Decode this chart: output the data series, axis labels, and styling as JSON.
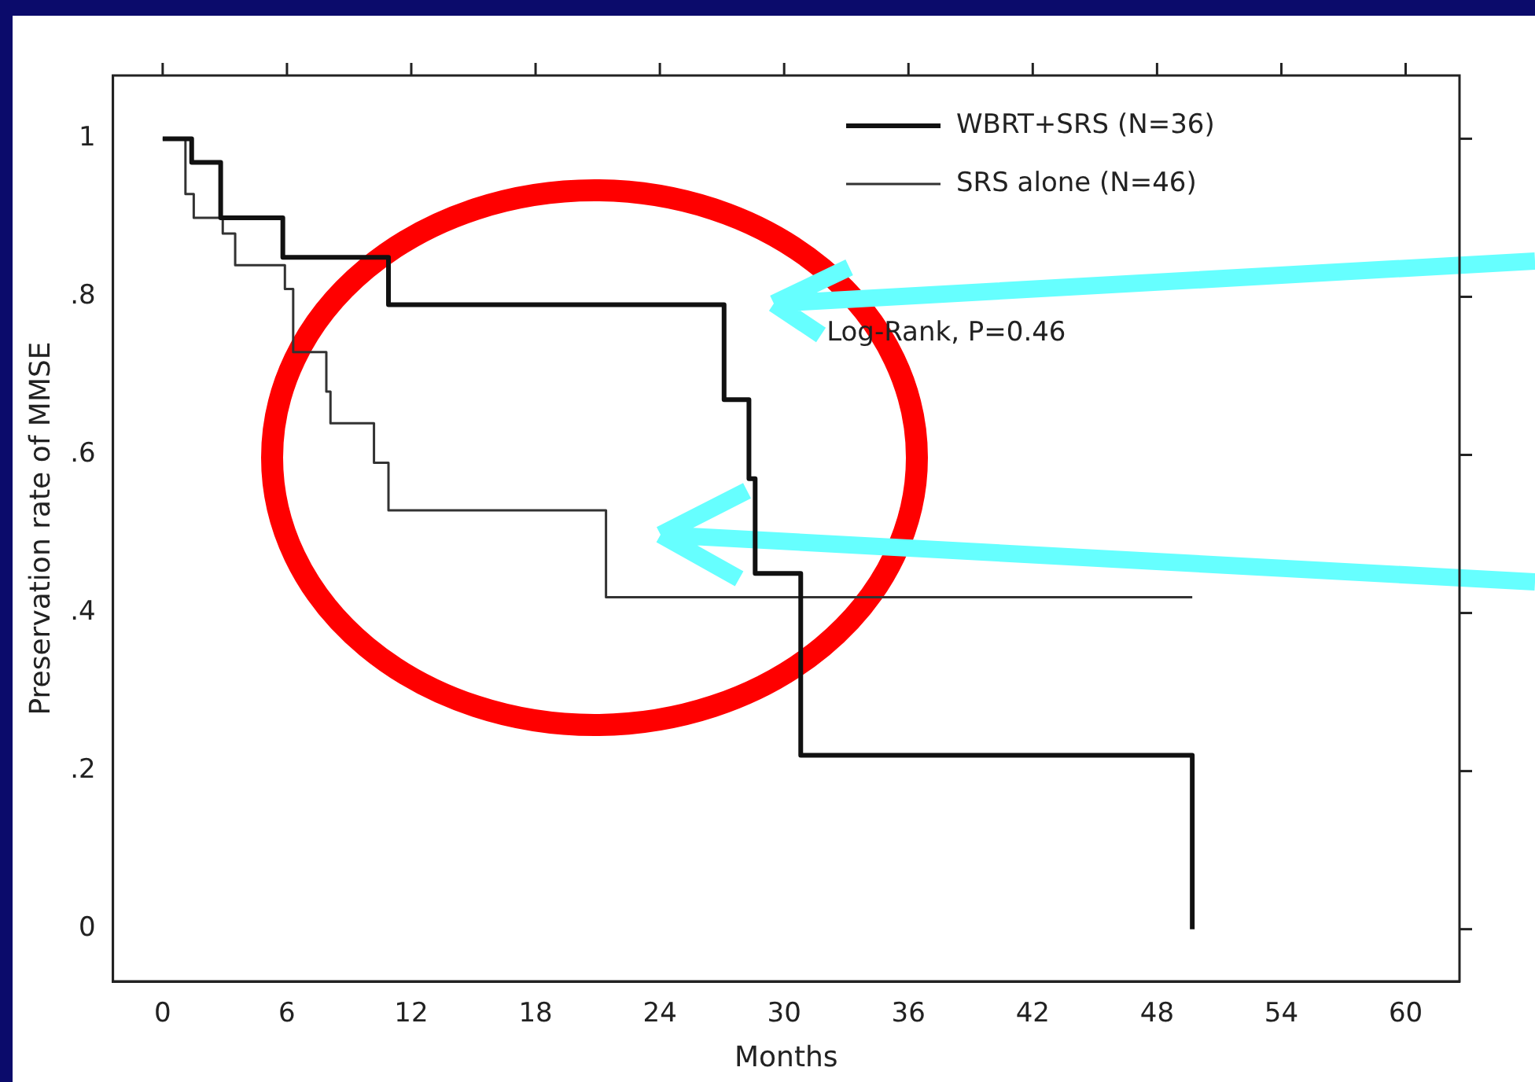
{
  "chart_data": {
    "type": "step",
    "xlabel": "Months",
    "ylabel": "Preservation rate of MMSE",
    "xlim": [
      -2.4,
      62.6
    ],
    "ylim": [
      -0.066,
      1.08
    ],
    "xticks": [
      0,
      6,
      12,
      18,
      24,
      30,
      36,
      42,
      48,
      54,
      60
    ],
    "yticks": [
      {
        "value": 0,
        "label": "0"
      },
      {
        "value": 0.2,
        "label": ".2"
      },
      {
        "value": 0.4,
        "label": ".4"
      },
      {
        "value": 0.6,
        "label": ".6"
      },
      {
        "value": 0.8,
        "label": ".8"
      },
      {
        "value": 1,
        "label": "1"
      }
    ],
    "legend": "top right",
    "grid": false,
    "annotations": [
      "Log-Rank, P=0.46"
    ],
    "series": [
      {
        "name": "WBRT+SRS (N=36)",
        "color": "#111111",
        "x": [
          0,
          1.4,
          2.8,
          5.8,
          10.9,
          27.1,
          28.3,
          28.6,
          30.8,
          49.7,
          49.7
        ],
        "values": [
          1,
          0.97,
          0.9,
          0.85,
          0.79,
          0.67,
          0.57,
          0.45,
          0.22,
          0.22,
          0
        ]
      },
      {
        "name": "SRS alone (N=46)",
        "color": "#333333",
        "x": [
          0,
          1.1,
          1.5,
          2.9,
          3.5,
          5.9,
          6.3,
          7.9,
          8.1,
          10.2,
          10.9,
          21.4,
          49.7
        ],
        "values": [
          1,
          0.93,
          0.9,
          0.88,
          0.84,
          0.81,
          0.73,
          0.68,
          0.64,
          0.59,
          0.53,
          0.42,
          0.42
        ]
      }
    ]
  }
}
